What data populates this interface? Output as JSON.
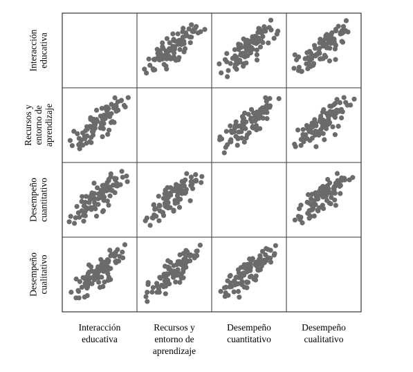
{
  "chart_data": {
    "type": "scatter",
    "variables": [
      "Interacción educativa",
      "Recursos y entorno de aprendizaje",
      "Desempeño cuantitativo",
      "Desempeño cualitativo"
    ],
    "row_labels": [
      [
        "Interacción",
        "educativa"
      ],
      [
        "Recursos y",
        "entorno de",
        "aprendizaje"
      ],
      [
        "Desempeño",
        "cuantitativo"
      ],
      [
        "Desempeño",
        "cualitativo"
      ]
    ],
    "column_labels": [
      [
        "Interacción",
        "educativa"
      ],
      [
        "Recursos y",
        "entorno de",
        "aprendizaje"
      ],
      [
        "Desempeño",
        "cuantitativo"
      ],
      [
        "Desempeño",
        "cualitativo"
      ]
    ],
    "diagonal": "empty",
    "point_color": "#6b6b6b",
    "grid": false,
    "legend": "none",
    "xlim": [
      0,
      1
    ],
    "ylim": [
      0,
      1
    ],
    "base_x": [
      0.05,
      0.08,
      0.1,
      0.12,
      0.13,
      0.15,
      0.17,
      0.18,
      0.2,
      0.21,
      0.22,
      0.23,
      0.25,
      0.26,
      0.27,
      0.28,
      0.29,
      0.3,
      0.31,
      0.32,
      0.33,
      0.34,
      0.35,
      0.35,
      0.36,
      0.37,
      0.38,
      0.39,
      0.4,
      0.4,
      0.41,
      0.42,
      0.43,
      0.44,
      0.45,
      0.45,
      0.46,
      0.47,
      0.48,
      0.49,
      0.5,
      0.5,
      0.51,
      0.52,
      0.53,
      0.54,
      0.55,
      0.55,
      0.56,
      0.57,
      0.58,
      0.59,
      0.6,
      0.6,
      0.61,
      0.62,
      0.63,
      0.64,
      0.65,
      0.65,
      0.66,
      0.67,
      0.68,
      0.69,
      0.7,
      0.71,
      0.72,
      0.73,
      0.74,
      0.75,
      0.76,
      0.77,
      0.78,
      0.8,
      0.82,
      0.84,
      0.86,
      0.88,
      0.9,
      0.93,
      0.3,
      0.44,
      0.52,
      0.58,
      0.66,
      0.36,
      0.48,
      0.62,
      0.7,
      0.4
    ],
    "base_y": [
      0.2,
      0.12,
      0.35,
      0.18,
      0.28,
      0.4,
      0.22,
      0.15,
      0.33,
      0.45,
      0.25,
      0.38,
      0.3,
      0.48,
      0.2,
      0.42,
      0.35,
      0.52,
      0.28,
      0.44,
      0.38,
      0.55,
      0.3,
      0.46,
      0.5,
      0.36,
      0.58,
      0.42,
      0.48,
      0.62,
      0.4,
      0.54,
      0.45,
      0.6,
      0.5,
      0.38,
      0.56,
      0.65,
      0.48,
      0.58,
      0.52,
      0.68,
      0.44,
      0.6,
      0.55,
      0.7,
      0.5,
      0.62,
      0.66,
      0.56,
      0.72,
      0.6,
      0.64,
      0.75,
      0.58,
      0.7,
      0.66,
      0.78,
      0.62,
      0.72,
      0.68,
      0.8,
      0.7,
      0.65,
      0.76,
      0.82,
      0.72,
      0.78,
      0.68,
      0.85,
      0.75,
      0.8,
      0.88,
      0.78,
      0.84,
      0.76,
      0.9,
      0.82,
      0.86,
      0.92,
      0.22,
      0.3,
      0.32,
      0.4,
      0.48,
      0.6,
      0.7,
      0.42,
      0.55,
      0.52
    ]
  }
}
